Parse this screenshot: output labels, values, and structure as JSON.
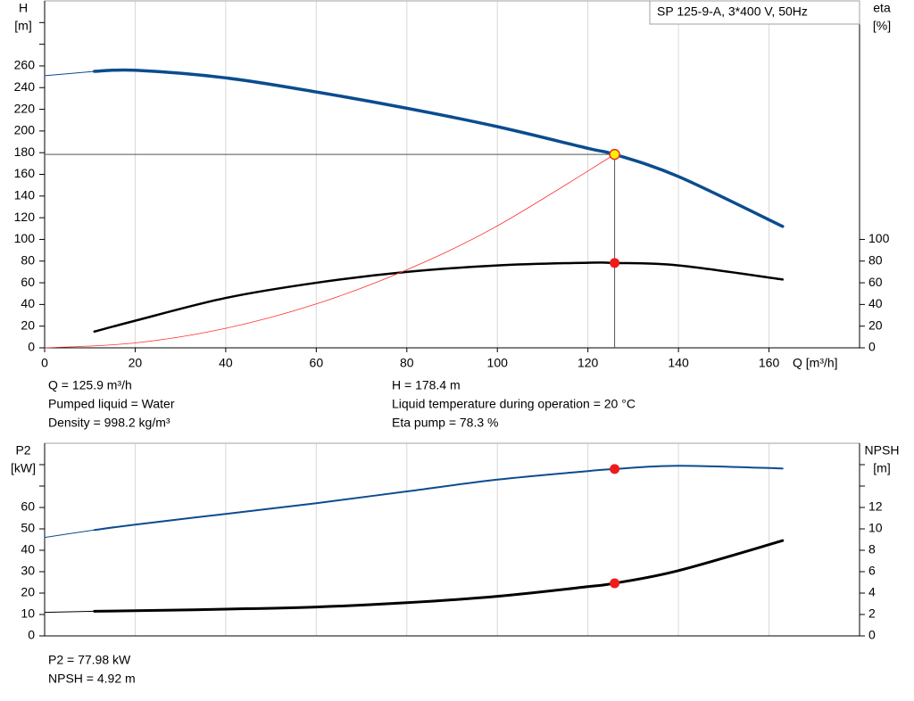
{
  "chart_data": [
    {
      "type": "line",
      "title": "SP 125-9-A, 3*400 V, 50Hz",
      "ylabel": "H",
      "yunit": "[m]",
      "y2label": "eta",
      "y2unit": "[%]",
      "xlabel": "Q [m³/h]",
      "xlim": [
        0,
        180
      ],
      "xticks": [
        0,
        20,
        40,
        60,
        80,
        100,
        120,
        140,
        160
      ],
      "ylim": [
        0,
        320
      ],
      "yticks": [
        0,
        20,
        40,
        60,
        80,
        100,
        120,
        140,
        160,
        180,
        200,
        220,
        240,
        260
      ],
      "yminor": [
        280,
        300
      ],
      "y2lim": [
        0,
        320
      ],
      "y2ticks": [
        0,
        20,
        40,
        60,
        80,
        100
      ],
      "series": [
        {
          "color": "#0b4c8f",
          "width": 1,
          "x": [
            0,
            11
          ],
          "values": [
            251,
            255
          ]
        },
        {
          "color": "#0b4c8f",
          "width": 3.5,
          "x": [
            11,
            20,
            40,
            60,
            80,
            100,
            120,
            125.9,
            140,
            163
          ],
          "values": [
            255,
            256,
            249,
            236,
            221,
            204,
            184,
            178.4,
            158,
            112
          ]
        },
        {
          "color": "#000000",
          "width": 2.5,
          "axis": "y2",
          "x": [
            11,
            20,
            40,
            60,
            80,
            100,
            120,
            125.9,
            140,
            163
          ],
          "values": [
            15,
            25,
            46,
            60,
            70,
            76,
            78.5,
            78.3,
            76,
            63
          ]
        },
        {
          "color": "#ff3030",
          "width": 0.8,
          "x": [
            0,
            20,
            40,
            60,
            80,
            100,
            125.9
          ],
          "values": [
            0,
            4.5,
            18,
            40.5,
            72,
            112.5,
            178.4
          ]
        }
      ],
      "points": [
        {
          "x": 125.9,
          "value": 178.4,
          "color": "#ffee00",
          "stroke": "#e03030",
          "crosshair": true
        },
        {
          "x": 125.9,
          "value": 78.3,
          "axis": "y2",
          "color": "#ee1c1c"
        }
      ],
      "notes": [
        "Q = 125.9 m³/h",
        "Pumped liquid = Water",
        "Density = 998.2 kg/m³",
        "H = 178.4 m",
        "Liquid temperature during operation = 20 °C",
        "Eta pump = 78.3 %"
      ]
    },
    {
      "type": "line",
      "ylabel": "P2",
      "yunit": "[kW]",
      "y2label": "NPSH",
      "y2unit": "[m]",
      "xlim": [
        0,
        180
      ],
      "xgrid": [
        20,
        40,
        60,
        80,
        100,
        120,
        140,
        160
      ],
      "ylim": [
        0,
        90
      ],
      "yticks": [
        0,
        10,
        20,
        30,
        40,
        50,
        60
      ],
      "yminor": [
        70,
        80
      ],
      "y2lim": [
        0,
        18
      ],
      "y2ticks": [
        0,
        2,
        4,
        6,
        8,
        10,
        12
      ],
      "y2minor": [
        14,
        16
      ],
      "series": [
        {
          "color": "#0b4c8f",
          "width": 1,
          "x": [
            0,
            11
          ],
          "values": [
            46,
            49.5
          ]
        },
        {
          "color": "#0b4c8f",
          "width": 2,
          "x": [
            11,
            20,
            40,
            60,
            80,
            100,
            120,
            125.9,
            140,
            163
          ],
          "values": [
            49.5,
            52,
            57,
            62,
            67.5,
            73,
            77,
            77.98,
            79.5,
            78.2
          ]
        },
        {
          "color": "#000000",
          "width": 1,
          "axis": "y2",
          "x": [
            0,
            11
          ],
          "values": [
            2.2,
            2.3
          ]
        },
        {
          "color": "#000000",
          "width": 3,
          "axis": "y2",
          "x": [
            11,
            20,
            40,
            60,
            80,
            100,
            120,
            125.9,
            140,
            163
          ],
          "values": [
            2.3,
            2.35,
            2.5,
            2.7,
            3.1,
            3.7,
            4.6,
            4.92,
            6.1,
            8.9
          ]
        }
      ],
      "points": [
        {
          "x": 125.9,
          "value": 77.98,
          "color": "#ee1c1c"
        },
        {
          "x": 125.9,
          "value": 4.92,
          "axis": "y2",
          "color": "#ee1c1c"
        }
      ],
      "notes": [
        "P2 = 77.98 kW",
        "NPSH = 4.92 m"
      ]
    }
  ]
}
